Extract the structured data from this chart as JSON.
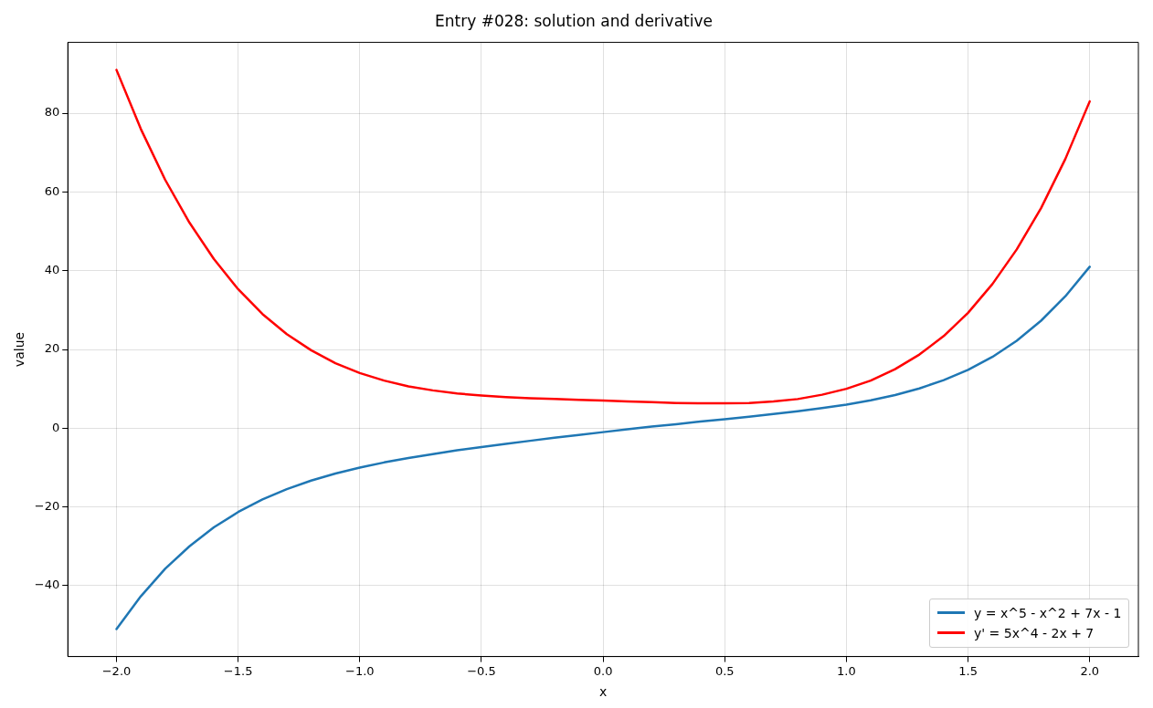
{
  "chart_data": {
    "type": "line",
    "title": "Entry #028: solution and derivative",
    "xlabel": "x",
    "ylabel": "value",
    "x": [
      -2,
      -1.9,
      -1.8,
      -1.7,
      -1.6,
      -1.5,
      -1.4,
      -1.3,
      -1.2,
      -1.1,
      -1,
      -0.9,
      -0.8,
      -0.7,
      -0.6,
      -0.5,
      -0.4,
      -0.3,
      -0.2,
      -0.1,
      0,
      0.1,
      0.2,
      0.3,
      0.4,
      0.5,
      0.6,
      0.7,
      0.8,
      0.9,
      1,
      1.1,
      1.2,
      1.3,
      1.4,
      1.5,
      1.6,
      1.7,
      1.8,
      1.9,
      2
    ],
    "series": [
      {
        "name": "y = x^5 - x^2 + 7x - 1",
        "color": "#1f77b4",
        "values": [
          -51,
          -42.7,
          -35.7,
          -30.0,
          -25.2,
          -21.3,
          -18.1,
          -15.5,
          -13.3,
          -11.5,
          -10,
          -8.7,
          -7.6,
          -6.6,
          -5.6,
          -4.8,
          -4.0,
          -3.2,
          -2.4,
          -1.7,
          -1,
          -0.3,
          0.4,
          1.0,
          1.7,
          2.3,
          2.9,
          3.6,
          4.3,
          5.1,
          6,
          7.1,
          8.4,
          10.1,
          12.2,
          14.8,
          18.1,
          22.2,
          27.3,
          33.5,
          41
        ]
      },
      {
        "name": "y' = 5x^4 - 2x + 7",
        "color": "#ff0000",
        "values": [
          91,
          76.0,
          63.1,
          52.2,
          43.0,
          35.3,
          29.0,
          23.9,
          19.8,
          16.5,
          14,
          12.1,
          10.6,
          9.6,
          8.8,
          8.3,
          7.9,
          7.6,
          7.4,
          7.2,
          7,
          6.8,
          6.6,
          6.4,
          6.3,
          6.3,
          6.4,
          6.8,
          7.4,
          8.5,
          10,
          12.1,
          15.0,
          18.7,
          23.4,
          29.3,
          36.6,
          45.4,
          55.9,
          68.4,
          83
        ]
      }
    ],
    "xlim": [
      -2.2,
      2.2
    ],
    "xticks": [
      {
        "value": -2,
        "label": "−2.0"
      },
      {
        "value": -1.5,
        "label": "−1.5"
      },
      {
        "value": -1,
        "label": "−1.0"
      },
      {
        "value": -0.5,
        "label": "−0.5"
      },
      {
        "value": 0,
        "label": "0.0"
      },
      0.5,
      {
        "value": 1,
        "label": "1.0"
      },
      1.5,
      {
        "value": 2,
        "label": "2.0"
      }
    ],
    "ylim": [
      -58,
      98
    ],
    "yticks": [
      {
        "value": -40,
        "label": "−40"
      },
      {
        "value": -20,
        "label": "−20"
      },
      0,
      20,
      40,
      60,
      80
    ],
    "grid": true,
    "legend": "bottom right",
    "marker": "none",
    "line_style": "solid"
  }
}
